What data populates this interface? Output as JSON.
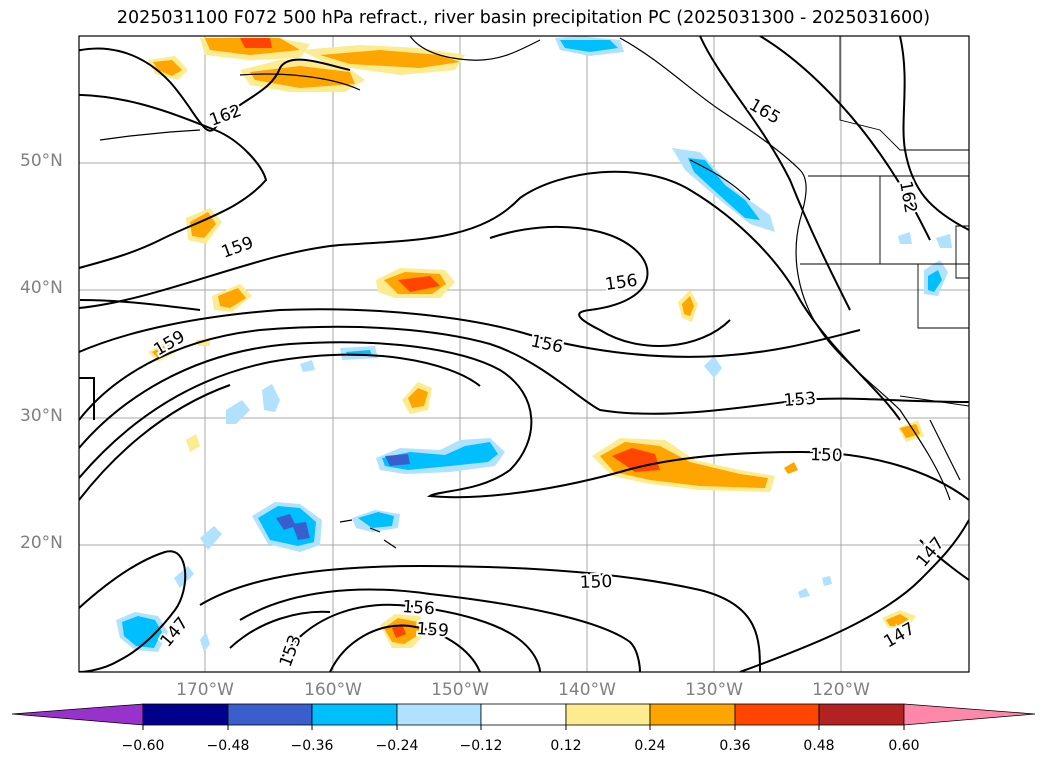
{
  "title": "2025031100 F072 500 hPa refract., river basin precipitation PC (2025031300 - 2025031600)",
  "lat_labels": [
    "50°N",
    "40°N",
    "30°N",
    "20°N"
  ],
  "lon_labels": [
    "170°W",
    "160°W",
    "150°W",
    "140°W",
    "130°W",
    "120°W"
  ],
  "contour_labels": [
    "162",
    "165",
    "159",
    "156",
    "159",
    "156",
    "153",
    "150",
    "150",
    "156",
    "159",
    "153",
    "147",
    "147",
    "147",
    "162"
  ],
  "colorbar": {
    "ticks": [
      "−0.60",
      "−0.48",
      "−0.36",
      "−0.24",
      "−0.12",
      "0.12",
      "0.24",
      "0.36",
      "0.48",
      "0.60"
    ],
    "colors": [
      "#9932cc",
      "#00008b",
      "#3a5fcd",
      "#00bfff",
      "#b0e2ff",
      "#ffffff",
      "#fdeb8f",
      "#ffa500",
      "#ff4500",
      "#b22222",
      "#ff88aa"
    ],
    "extend": "both"
  },
  "colors": {
    "contour": "#000000",
    "coast": "#000000",
    "grid": "#a0a0a0",
    "axis_label": "#808080"
  }
}
